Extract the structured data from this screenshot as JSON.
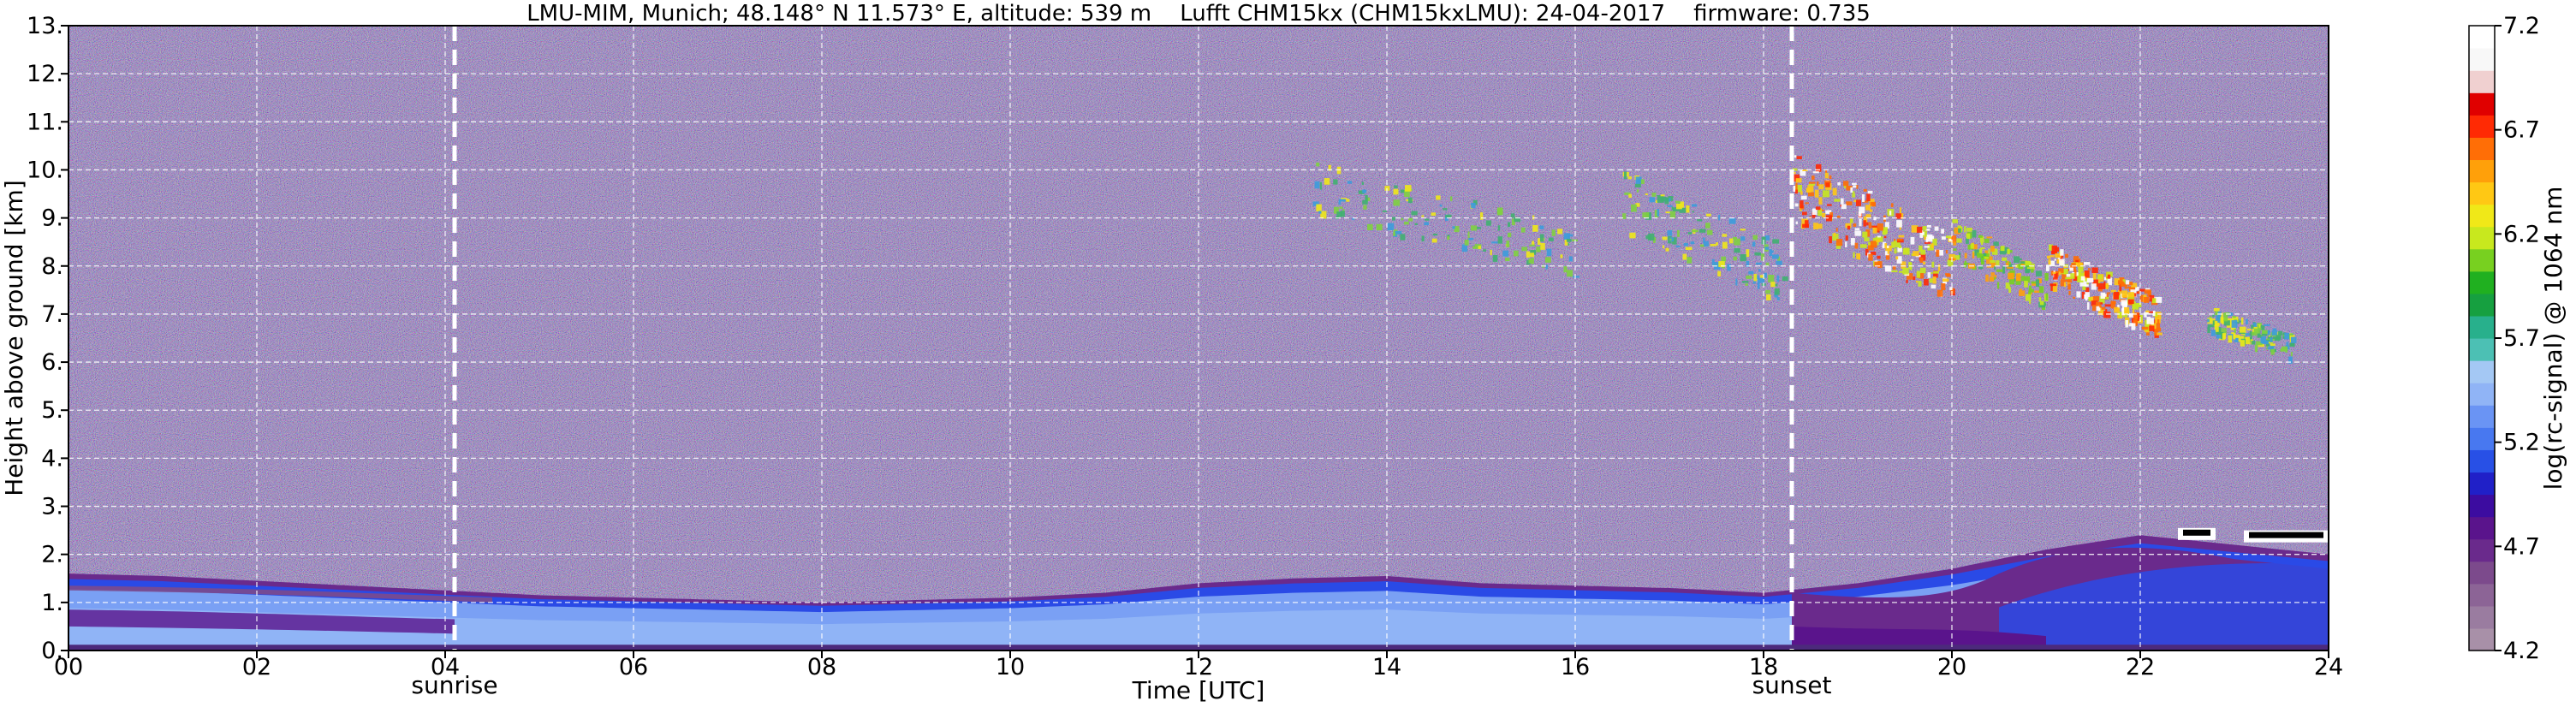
{
  "chart_data": {
    "type": "heatmap",
    "title": "LMU-MIM, Munich; 48.148° N 11.573° E, altitude: 539 m    Lufft CHM15kx (CHM15kxLMU): 24-04-2017    firmware: 0.735",
    "xlabel": "Time [UTC]",
    "ylabel": "Height above ground [km]",
    "xlim": [
      0,
      24
    ],
    "ylim": [
      0,
      13
    ],
    "x_ticks": [
      {
        "value": 0,
        "label": "00"
      },
      {
        "value": 2,
        "label": "02"
      },
      {
        "value": 4,
        "label": "04"
      },
      {
        "value": 6,
        "label": "06"
      },
      {
        "value": 8,
        "label": "08"
      },
      {
        "value": 10,
        "label": "10"
      },
      {
        "value": 12,
        "label": "12"
      },
      {
        "value": 14,
        "label": "14"
      },
      {
        "value": 16,
        "label": "16"
      },
      {
        "value": 18,
        "label": "18"
      },
      {
        "value": 20,
        "label": "20"
      },
      {
        "value": 22,
        "label": "22"
      },
      {
        "value": 24,
        "label": "24"
      }
    ],
    "y_ticks": [
      {
        "value": 0,
        "label": "0."
      },
      {
        "value": 1,
        "label": "1."
      },
      {
        "value": 2,
        "label": "2."
      },
      {
        "value": 3,
        "label": "3."
      },
      {
        "value": 4,
        "label": "4."
      },
      {
        "value": 5,
        "label": "5."
      },
      {
        "value": 6,
        "label": "6."
      },
      {
        "value": 7,
        "label": "7."
      },
      {
        "value": 8,
        "label": "8."
      },
      {
        "value": 9,
        "label": "9."
      },
      {
        "value": 10,
        "label": "10."
      },
      {
        "value": 11,
        "label": "11."
      },
      {
        "value": 12,
        "label": "12."
      },
      {
        "value": 13,
        "label": "13."
      }
    ],
    "grid": true,
    "markers": [
      {
        "time": 4.1,
        "label": "sunrise"
      },
      {
        "time": 18.3,
        "label": "sunset"
      }
    ],
    "boundary_layer_top_km": [
      [
        0,
        1.6
      ],
      [
        1,
        1.55
      ],
      [
        2,
        1.45
      ],
      [
        3,
        1.35
      ],
      [
        4,
        1.25
      ],
      [
        5,
        1.15
      ],
      [
        6,
        1.1
      ],
      [
        7,
        1.05
      ],
      [
        8,
        1.0
      ],
      [
        9,
        1.05
      ],
      [
        10,
        1.1
      ],
      [
        11,
        1.2
      ],
      [
        12,
        1.4
      ],
      [
        13,
        1.5
      ],
      [
        14,
        1.55
      ],
      [
        15,
        1.4
      ],
      [
        16,
        1.35
      ],
      [
        17,
        1.3
      ],
      [
        18,
        1.2
      ],
      [
        19,
        1.4
      ],
      [
        20,
        1.7
      ],
      [
        21,
        2.1
      ],
      [
        22,
        2.4
      ],
      [
        23,
        2.2
      ],
      [
        24,
        2.0
      ]
    ],
    "cloud_features": [
      {
        "t0": 13.2,
        "t1": 16.0,
        "h0": 8.0,
        "h1": 10.2,
        "intensity": "low"
      },
      {
        "t0": 16.5,
        "t1": 18.2,
        "h0": 7.5,
        "h1": 10.0,
        "intensity": "low"
      },
      {
        "t0": 18.3,
        "t1": 20.0,
        "h0": 7.5,
        "h1": 10.4,
        "intensity": "high"
      },
      {
        "t0": 20.0,
        "t1": 21.0,
        "h0": 7.3,
        "h1": 9.0,
        "intensity": "medium"
      },
      {
        "t0": 21.0,
        "t1": 22.2,
        "h0": 6.7,
        "h1": 8.5,
        "intensity": "high"
      },
      {
        "t0": 22.7,
        "t1": 23.6,
        "h0": 6.2,
        "h1": 7.2,
        "intensity": "low"
      },
      {
        "t0": 22.4,
        "t1": 22.8,
        "h0": 2.3,
        "h1": 2.55,
        "intensity": "saturated"
      },
      {
        "t0": 23.1,
        "t1": 24.0,
        "h0": 2.25,
        "h1": 2.5,
        "intensity": "saturated"
      }
    ],
    "colorbar": {
      "label": "log(rc-signal) @ 1064 nm",
      "min": 4.2,
      "max": 7.2,
      "ticks": [
        {
          "value": 4.2,
          "label": "4.2"
        },
        {
          "value": 4.7,
          "label": "4.7"
        },
        {
          "value": 5.2,
          "label": "5.2"
        },
        {
          "value": 5.7,
          "label": "5.7"
        },
        {
          "value": 6.2,
          "label": "6.2"
        },
        {
          "value": 6.7,
          "label": "6.7"
        },
        {
          "value": 7.2,
          "label": "7.2"
        }
      ],
      "colors": [
        "#a890a8",
        "#9a7ca0",
        "#8c6496",
        "#7c4a8c",
        "#6a2a8c",
        "#5a148c",
        "#3c0ca0",
        "#2020c8",
        "#2850e6",
        "#4878f0",
        "#6a94f4",
        "#90b4f6",
        "#a4c8f4",
        "#4cc0b4",
        "#28b08c",
        "#16a040",
        "#20b020",
        "#78d020",
        "#c8e81e",
        "#f0e818",
        "#ffc814",
        "#ffa00a",
        "#ff6e06",
        "#ff2a04",
        "#e00000",
        "#f0d0d0",
        "#f8f8f8",
        "#ffffff"
      ]
    }
  }
}
